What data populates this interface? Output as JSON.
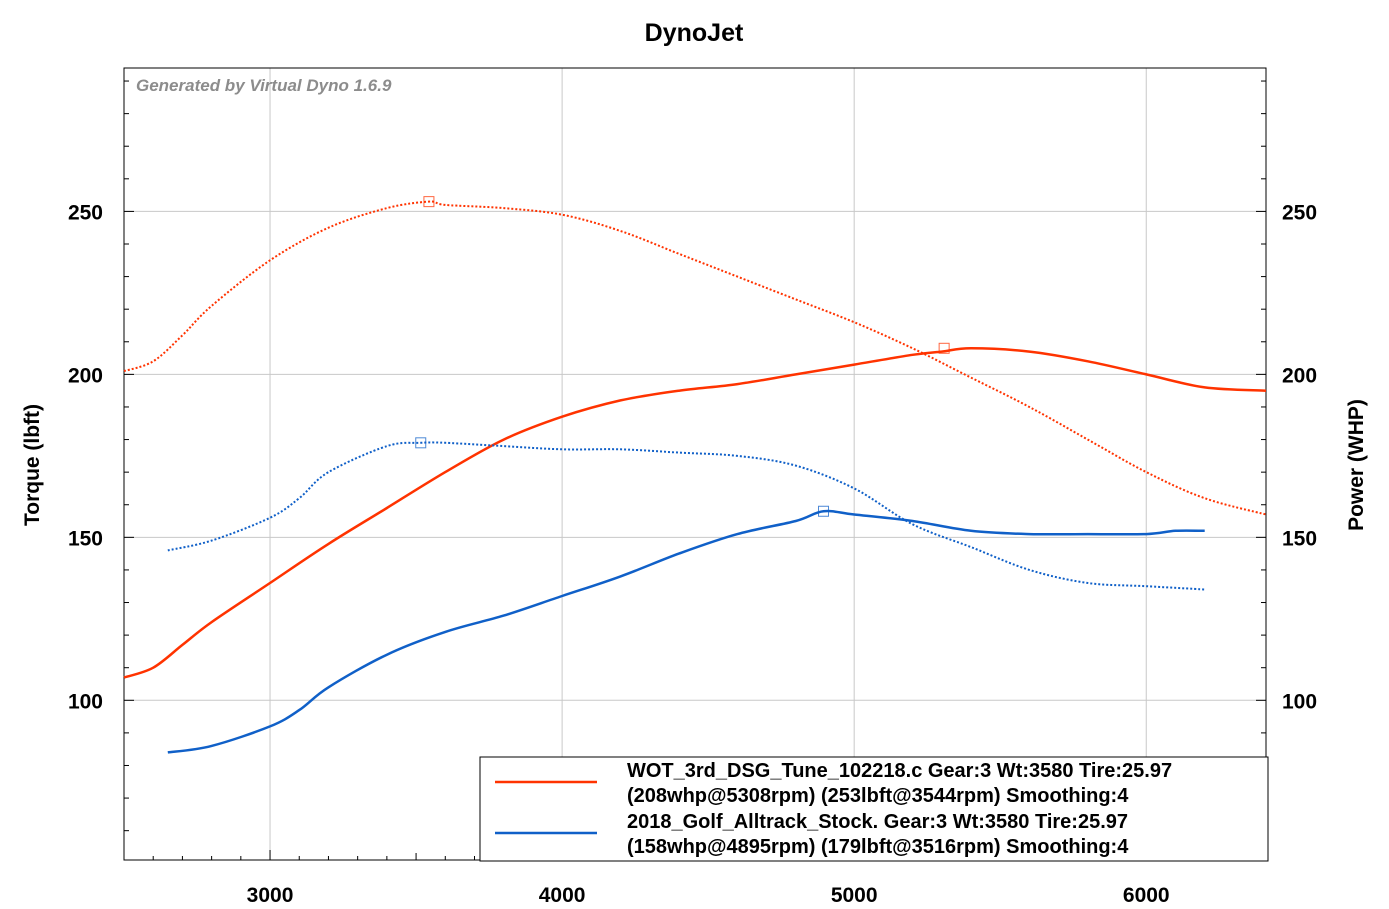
{
  "chart_data": {
    "type": "line",
    "title": "DynoJet",
    "watermark": "Generated by Virtual Dyno 1.6.9",
    "xlabel": "",
    "ylabel_left": "Torque (lbft)",
    "ylabel_right": "Power (WHP)",
    "xlim": [
      2500,
      6410
    ],
    "ylim": [
      51,
      294
    ],
    "x_ticks": [
      "3000",
      "4000",
      "5000",
      "6000"
    ],
    "y_ticks_left": [
      "100",
      "150",
      "200",
      "250"
    ],
    "y_ticks_right": [
      "100",
      "150",
      "200",
      "250"
    ],
    "grid": true,
    "legend_position": "bottom-right",
    "colors": {
      "tune": "#ff3300",
      "stock": "#1060c8",
      "grid": "#c8c8c8"
    },
    "series": [
      {
        "name": "WOT_3rd_DSG_Tune_102218.c",
        "legend_line1": "WOT_3rd_DSG_Tune_102218.c Gear:3 Wt:3580 Tire:25.97",
        "legend_line2": "(208whp@5308rpm) (253lbft@3544rpm) Smoothing:4",
        "color": "#ff3300",
        "power": {
          "x": [
            2500,
            2600,
            2700,
            2800,
            3000,
            3200,
            3400,
            3600,
            3800,
            4000,
            4200,
            4400,
            4600,
            4800,
            5000,
            5200,
            5300,
            5400,
            5600,
            5800,
            6000,
            6200,
            6410
          ],
          "y": [
            107,
            110,
            117,
            124,
            136,
            148,
            159,
            170,
            180,
            187,
            192,
            195,
            197,
            200,
            203,
            206,
            207,
            208,
            207,
            204,
            200,
            196,
            195
          ]
        },
        "torque": {
          "x": [
            2500,
            2600,
            2700,
            2800,
            3000,
            3200,
            3400,
            3544,
            3600,
            3800,
            4000,
            4200,
            4400,
            4600,
            4800,
            5000,
            5200,
            5400,
            5600,
            5800,
            6000,
            6200,
            6410
          ],
          "y": [
            201,
            204,
            212,
            221,
            235,
            245,
            251,
            253,
            252,
            251,
            249,
            244,
            237,
            230,
            223,
            216,
            208,
            199,
            190,
            180,
            170,
            162,
            157
          ]
        },
        "peak_power": {
          "x": 5308,
          "y": 208
        },
        "peak_torque": {
          "x": 3544,
          "y": 253
        }
      },
      {
        "name": "2018_Golf_Alltrack_Stock.",
        "legend_line1": "2018_Golf_Alltrack_Stock. Gear:3 Wt:3580 Tire:25.97",
        "legend_line2": "(158whp@4895rpm) (179lbft@3516rpm) Smoothing:4",
        "color": "#1060c8",
        "power": {
          "x": [
            2650,
            2800,
            3000,
            3100,
            3200,
            3400,
            3600,
            3800,
            4000,
            4200,
            4400,
            4600,
            4800,
            4895,
            5000,
            5200,
            5400,
            5600,
            5800,
            6000,
            6100,
            6200
          ],
          "y": [
            84,
            86,
            92,
            97,
            104,
            114,
            121,
            126,
            132,
            138,
            145,
            151,
            155,
            158,
            157,
            155,
            152,
            151,
            151,
            151,
            152,
            152
          ]
        },
        "torque": {
          "x": [
            2650,
            2800,
            3000,
            3100,
            3200,
            3400,
            3516,
            3600,
            3800,
            4000,
            4200,
            4400,
            4600,
            4800,
            5000,
            5200,
            5400,
            5600,
            5800,
            6000,
            6200
          ],
          "y": [
            146,
            149,
            156,
            162,
            170,
            178,
            179,
            179,
            178,
            177,
            177,
            176,
            175,
            172,
            165,
            154,
            147,
            140,
            136,
            135,
            134
          ]
        },
        "peak_power": {
          "x": 4895,
          "y": 158
        },
        "peak_torque": {
          "x": 3516,
          "y": 179
        }
      }
    ]
  }
}
